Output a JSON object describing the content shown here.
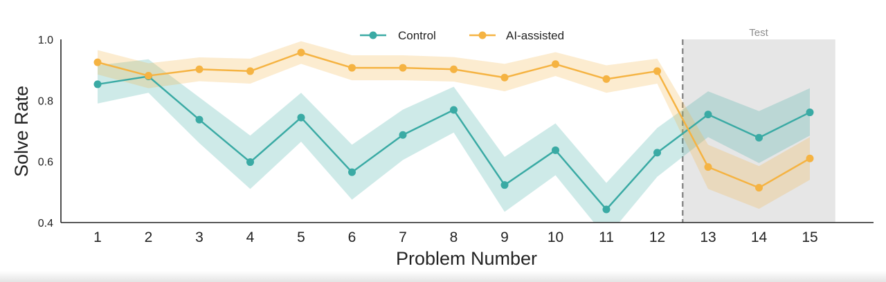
{
  "chart_data": {
    "type": "line",
    "title": "",
    "xlabel": "Problem Number",
    "ylabel": "Solve Rate",
    "x": [
      1,
      2,
      3,
      4,
      5,
      6,
      7,
      8,
      9,
      10,
      11,
      12,
      13,
      14,
      15
    ],
    "xlim": [
      0.3,
      16.2
    ],
    "ylim": [
      0.4,
      1.0
    ],
    "yticks": [
      0.4,
      0.6,
      0.8,
      1.0
    ],
    "ytick_labels": [
      "0.4",
      "0.6",
      "0.8",
      "1.0"
    ],
    "xtick_labels": [
      "1",
      "2",
      "3",
      "4",
      "5",
      "6",
      "7",
      "8",
      "9",
      "10",
      "11",
      "12",
      "13",
      "14",
      "15"
    ],
    "grid": false,
    "legend": {
      "placement": "top-center",
      "orientation": "horizontal"
    },
    "series": [
      {
        "name": "Control",
        "color": "#3aaaa4",
        "values": [
          0.853,
          0.879,
          0.737,
          0.598,
          0.744,
          0.565,
          0.687,
          0.769,
          0.523,
          0.637,
          0.443,
          0.629,
          0.754,
          0.678,
          0.761
        ],
        "lower": [
          0.79,
          0.825,
          0.66,
          0.51,
          0.665,
          0.475,
          0.605,
          0.695,
          0.435,
          0.555,
          0.35,
          0.55,
          0.68,
          0.595,
          0.685
        ],
        "upper": [
          0.915,
          0.935,
          0.81,
          0.685,
          0.825,
          0.655,
          0.77,
          0.845,
          0.615,
          0.725,
          0.53,
          0.71,
          0.83,
          0.765,
          0.84
        ]
      },
      {
        "name": "AI-assisted",
        "color": "#f5b342",
        "values": [
          0.925,
          0.881,
          0.902,
          0.896,
          0.957,
          0.907,
          0.907,
          0.902,
          0.875,
          0.919,
          0.87,
          0.896,
          0.582,
          0.514,
          0.61
        ],
        "lower": [
          0.885,
          0.84,
          0.863,
          0.855,
          0.92,
          0.866,
          0.866,
          0.862,
          0.83,
          0.88,
          0.825,
          0.855,
          0.51,
          0.445,
          0.54
        ],
        "upper": [
          0.965,
          0.922,
          0.941,
          0.937,
          0.994,
          0.948,
          0.948,
          0.942,
          0.92,
          0.958,
          0.915,
          0.937,
          0.655,
          0.585,
          0.68
        ]
      }
    ],
    "test_region": {
      "label": "Test",
      "x_start": 12.5,
      "x_end": 15.5,
      "divider_x": 12.5,
      "fill_color": "#e6e6e6",
      "divider_color": "#8a8a8a",
      "label_color": "#8c8c8c"
    }
  }
}
